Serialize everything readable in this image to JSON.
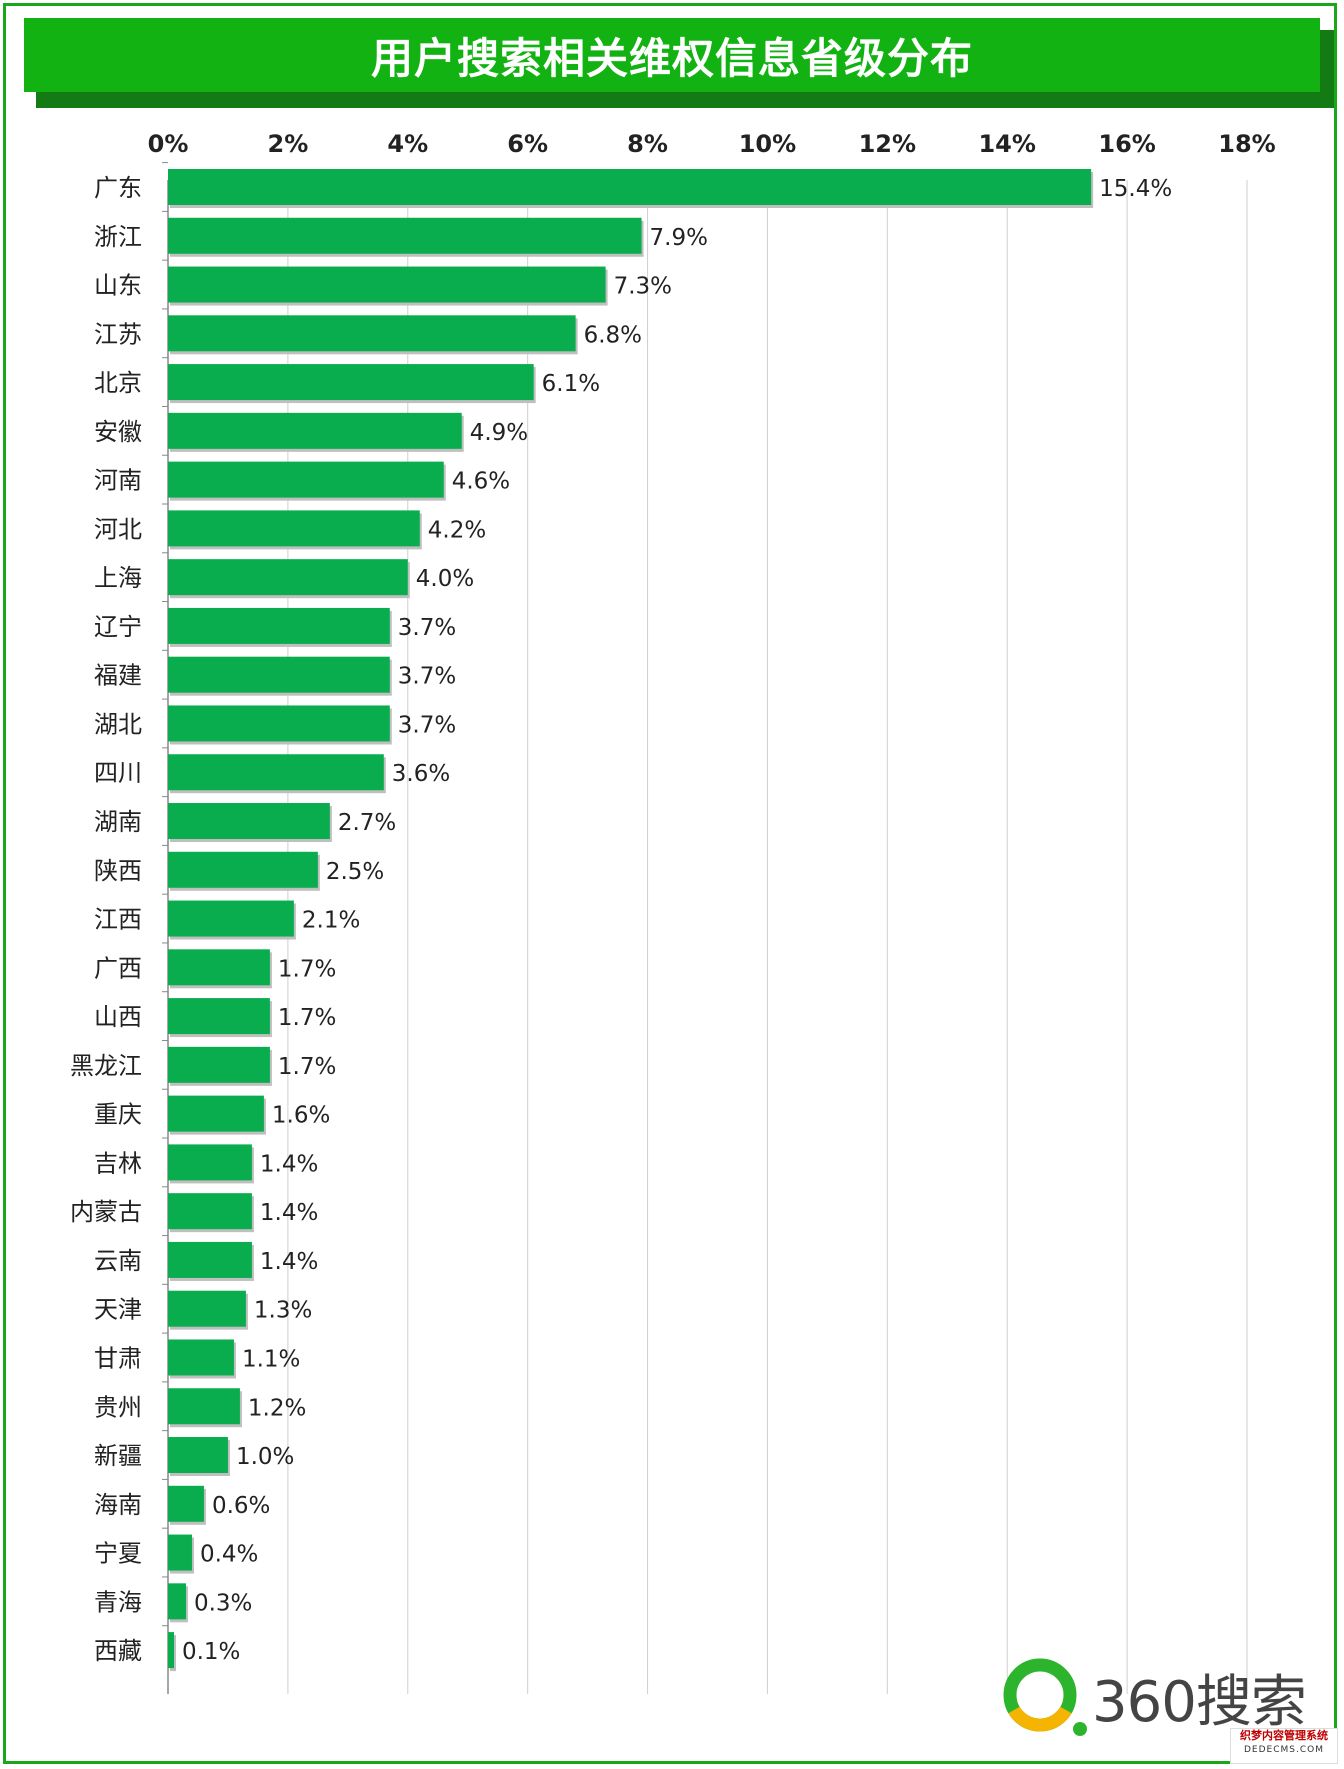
{
  "title": "用户搜索相关维权信息省级分布",
  "colors": {
    "frame": "#19a819",
    "title_bg": "#12b212",
    "title_shadow": "#147a14",
    "bar": "#0aad4e",
    "grid": "#cfcfcf",
    "axis": "#888888",
    "text": "#222222"
  },
  "chart_data": {
    "type": "bar",
    "orientation": "horizontal",
    "title": "用户搜索相关维权信息省级分布",
    "xlabel": "",
    "ylabel": "",
    "xlim": [
      0,
      18
    ],
    "x_ticks": [
      "0%",
      "2%",
      "4%",
      "6%",
      "8%",
      "10%",
      "12%",
      "14%",
      "16%",
      "18%"
    ],
    "x_axis_position": "top",
    "grid": true,
    "value_suffix": "%",
    "categories": [
      "广东",
      "浙江",
      "山东",
      "江苏",
      "北京",
      "安徽",
      "河南",
      "河北",
      "上海",
      "辽宁",
      "福建",
      "湖北",
      "四川",
      "湖南",
      "陕西",
      "江西",
      "广西",
      "山西",
      "黑龙江",
      "重庆",
      "吉林",
      "内蒙古",
      "云南",
      "天津",
      "甘肃",
      "贵州",
      "新疆",
      "海南",
      "宁夏",
      "青海",
      "西藏"
    ],
    "values": [
      15.4,
      7.9,
      7.3,
      6.8,
      6.1,
      4.9,
      4.6,
      4.2,
      4.0,
      3.7,
      3.7,
      3.7,
      3.6,
      2.7,
      2.5,
      2.1,
      1.7,
      1.7,
      1.7,
      1.6,
      1.4,
      1.4,
      1.4,
      1.3,
      1.1,
      1.2,
      1.0,
      0.6,
      0.4,
      0.3,
      0.1
    ],
    "data_labels": [
      "15.4%",
      "7.9%",
      "7.3%",
      "6.8%",
      "6.1%",
      "4.9%",
      "4.6%",
      "4.2%",
      "4.0%",
      "3.7%",
      "3.7%",
      "3.7%",
      "3.6%",
      "2.7%",
      "2.5%",
      "2.1%",
      "1.7%",
      "1.7%",
      "1.7%",
      "1.6%",
      "1.4%",
      "1.4%",
      "1.4%",
      "1.3%",
      "1.1%",
      "1.2%",
      "1.0%",
      "0.6%",
      "0.4%",
      "0.3%",
      "0.1%"
    ]
  },
  "logo": {
    "text": "360搜索",
    "icon": "360-search-ring-icon"
  },
  "watermark": {
    "line1": "织梦内容管理系统",
    "line2": "DEDECMS.COM"
  }
}
